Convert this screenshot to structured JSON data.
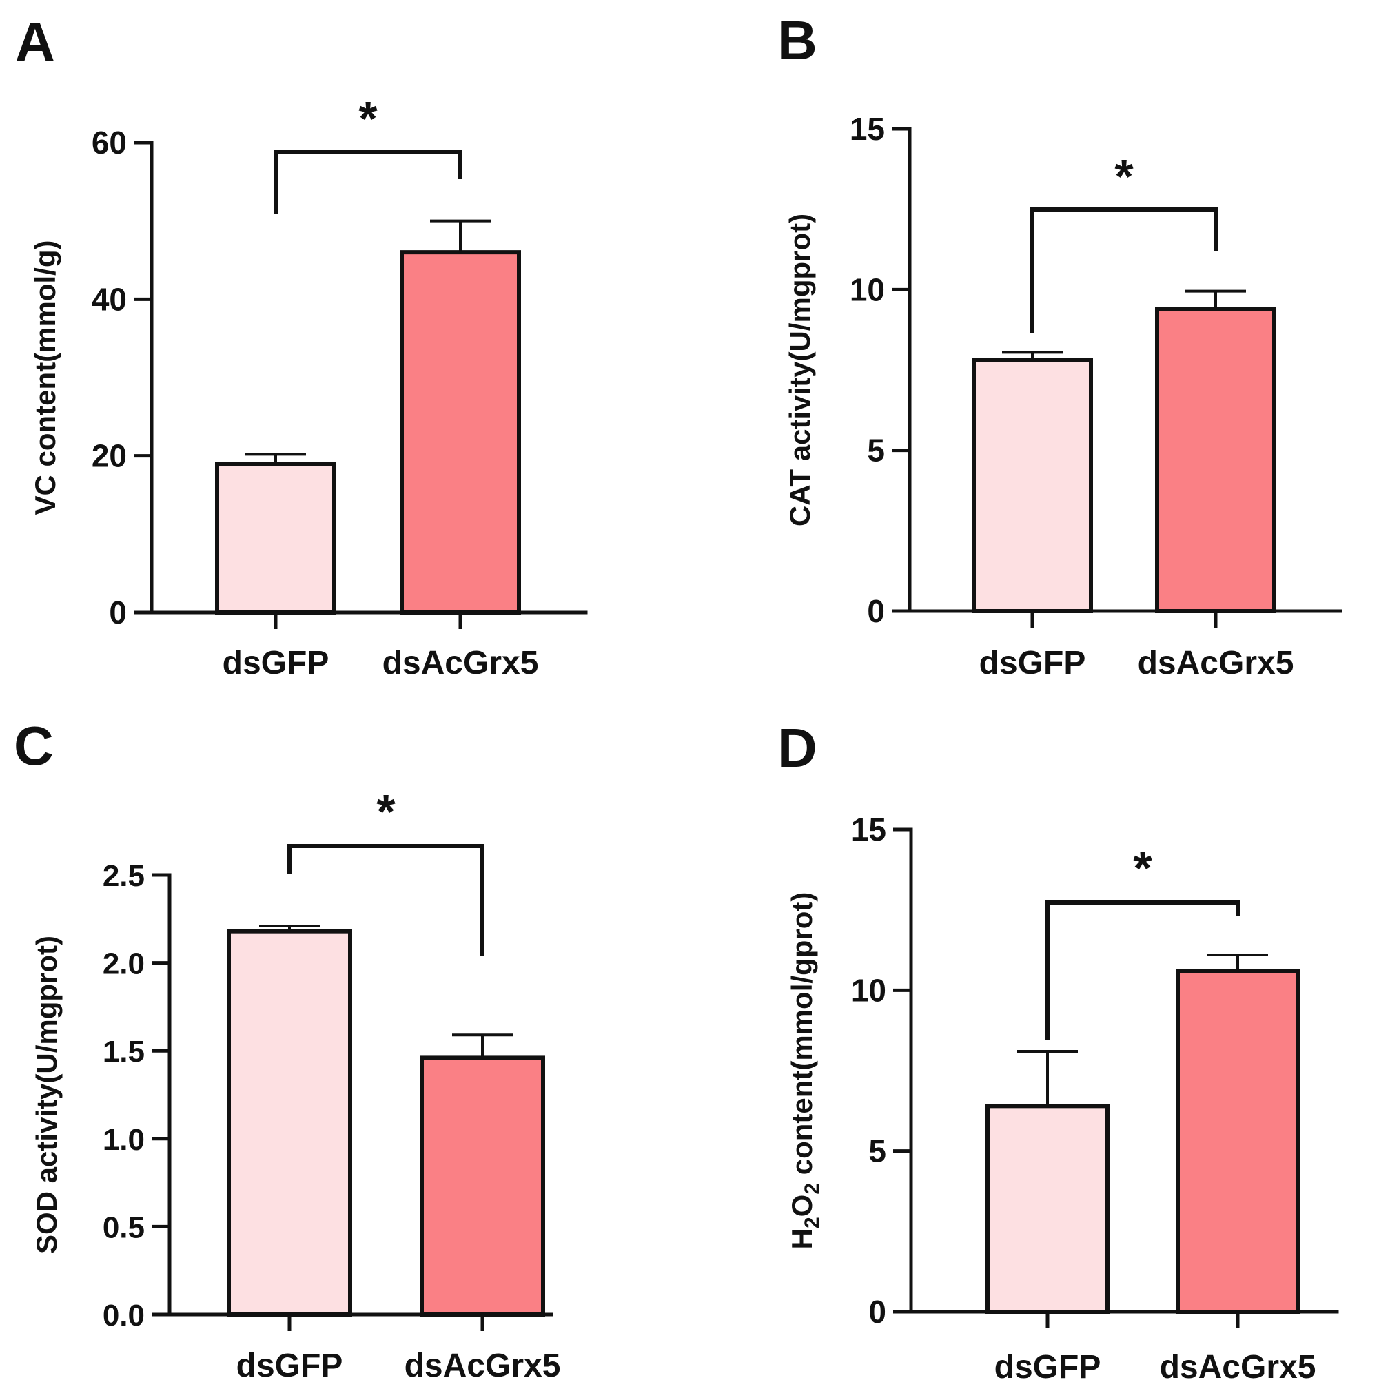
{
  "colors": {
    "control": "#fde0e2",
    "treatment": "#fa8085",
    "ink": "#111111"
  },
  "chart_data": [
    {
      "panel": "A",
      "type": "bar",
      "categories": [
        "dsGFP",
        "dsAcGrx5"
      ],
      "values": [
        19,
        46
      ],
      "errors": [
        1.2,
        4
      ],
      "ylabel": "VC content(mmol/g)",
      "ylim": [
        0,
        60
      ],
      "yticks": [
        "0",
        "20",
        "40",
        "60"
      ],
      "significance": {
        "label": "*",
        "from": 0,
        "to": 1
      }
    },
    {
      "panel": "B",
      "type": "bar",
      "categories": [
        "dsGFP",
        "dsAcGrx5"
      ],
      "values": [
        7.8,
        9.4
      ],
      "errors": [
        0.25,
        0.55
      ],
      "ylabel": "CAT activity(U/mgprot)",
      "ylim": [
        0,
        15
      ],
      "yticks": [
        "0",
        "5",
        "10",
        "15"
      ],
      "significance": {
        "label": "*",
        "from": 0,
        "to": 1
      }
    },
    {
      "panel": "C",
      "type": "bar",
      "categories": [
        "dsGFP",
        "dsAcGrx5"
      ],
      "values": [
        2.18,
        1.46
      ],
      "errors": [
        0.03,
        0.13
      ],
      "ylabel": "SOD activity(U/mgprot)",
      "ylim": [
        0,
        2.5
      ],
      "yticks": [
        "0.0",
        "0.5",
        "1.0",
        "1.5",
        "2.0",
        "2.5"
      ],
      "significance": {
        "label": "*",
        "from": 0,
        "to": 1
      }
    },
    {
      "panel": "D",
      "type": "bar",
      "categories": [
        "dsGFP",
        "dsAcGrx5"
      ],
      "values": [
        6.4,
        10.6
      ],
      "errors": [
        1.7,
        0.5
      ],
      "ylabel_parts": {
        "h": "H",
        "sub1": "2",
        "o": "O",
        "sub2": "2",
        "rest": " content(mmol/gprot)"
      },
      "ylim": [
        0,
        15
      ],
      "yticks": [
        "0",
        "5",
        "10",
        "15"
      ],
      "significance": {
        "label": "*",
        "from": 0,
        "to": 1
      }
    }
  ]
}
